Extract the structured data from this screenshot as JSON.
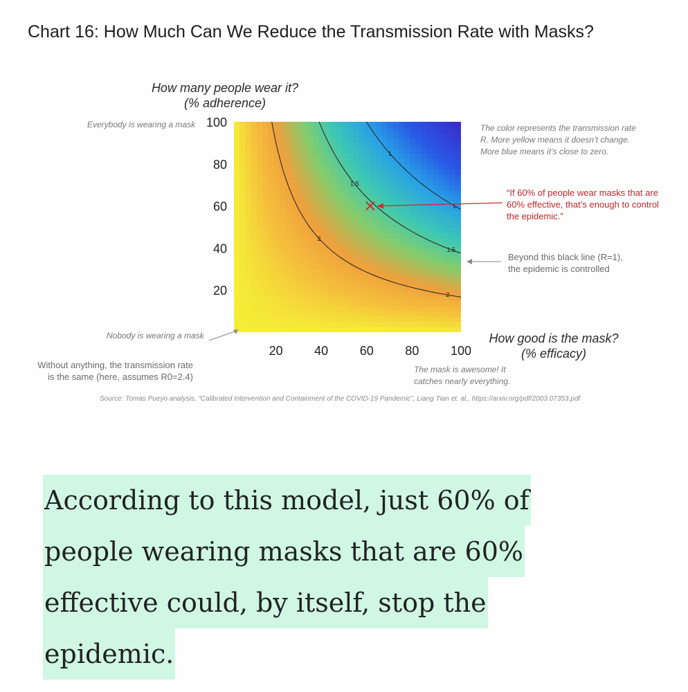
{
  "title": "Chart 16: How Much Can We Reduce the Transmission Rate with Masks?",
  "y_axis_title": [
    "How many people wear it?",
    "(% adherence)"
  ],
  "x_axis_title": [
    "How good is the mask?",
    "(% efficacy)"
  ],
  "notes": {
    "everybody": "Everybody is wearing a mask",
    "nobody": "Nobody is wearing a mask",
    "color_explain": [
      "The color represents the transmission rate",
      "R. More yellow means it doesn’t change.",
      "More blue means it’s close to zero."
    ],
    "callout_60": [
      "“If 60% of people wear masks that are",
      "60% effective, that’s enough to control",
      "the epidemic.”"
    ],
    "callout_line": [
      "Beyond this black line (R=1),",
      "the epidemic is controlled"
    ],
    "without": [
      "Without anything, the transmission rate",
      "is the same (here, assumes R0=2.4)"
    ],
    "awesome": [
      "The mask is awesome! It",
      "catches nearly everything."
    ],
    "source": "Source: Tomas Pueyo analysis, “Calibrated Intervention and Containment of the COVID-19 Pandemic”, Liang Tian et. al., https://arxiv.org/pdf/2003.07353.pdf"
  },
  "chart_data": {
    "type": "heatmap",
    "title": "Chart 16: How Much Can We Reduce the Transmission Rate with Masks?",
    "xlabel": "How good is the mask? (% efficacy)",
    "ylabel": "How many people wear it? (% adherence)",
    "xlim": [
      0,
      100
    ],
    "ylim": [
      0,
      100
    ],
    "x_ticks": [
      "20",
      "40",
      "60",
      "80",
      "100"
    ],
    "y_ticks": [
      "20",
      "40",
      "60",
      "80",
      "100"
    ],
    "y_tick_values": [
      20,
      40,
      60,
      80,
      100
    ],
    "x_tick_values": [
      20,
      40,
      60,
      80,
      100
    ],
    "R0": 2.4,
    "contour_levels": [
      2,
      1.5,
      1
    ],
    "contour_labels": [
      "2",
      "1.5",
      "1"
    ],
    "colors": {
      "high_R": "#f5ee3a",
      "mid_R": "#f0a040",
      "low_R": "#3a2fcb",
      "marker": "#d3292b"
    },
    "highlight_point": {
      "x": 60,
      "y": 60,
      "label": "60% adherence, 60% efficacy"
    }
  },
  "quote_lines": [
    "According to this model, just 60% of",
    "people wearing masks that are 60%",
    "effective could, by itself, stop the",
    "epidemic."
  ]
}
